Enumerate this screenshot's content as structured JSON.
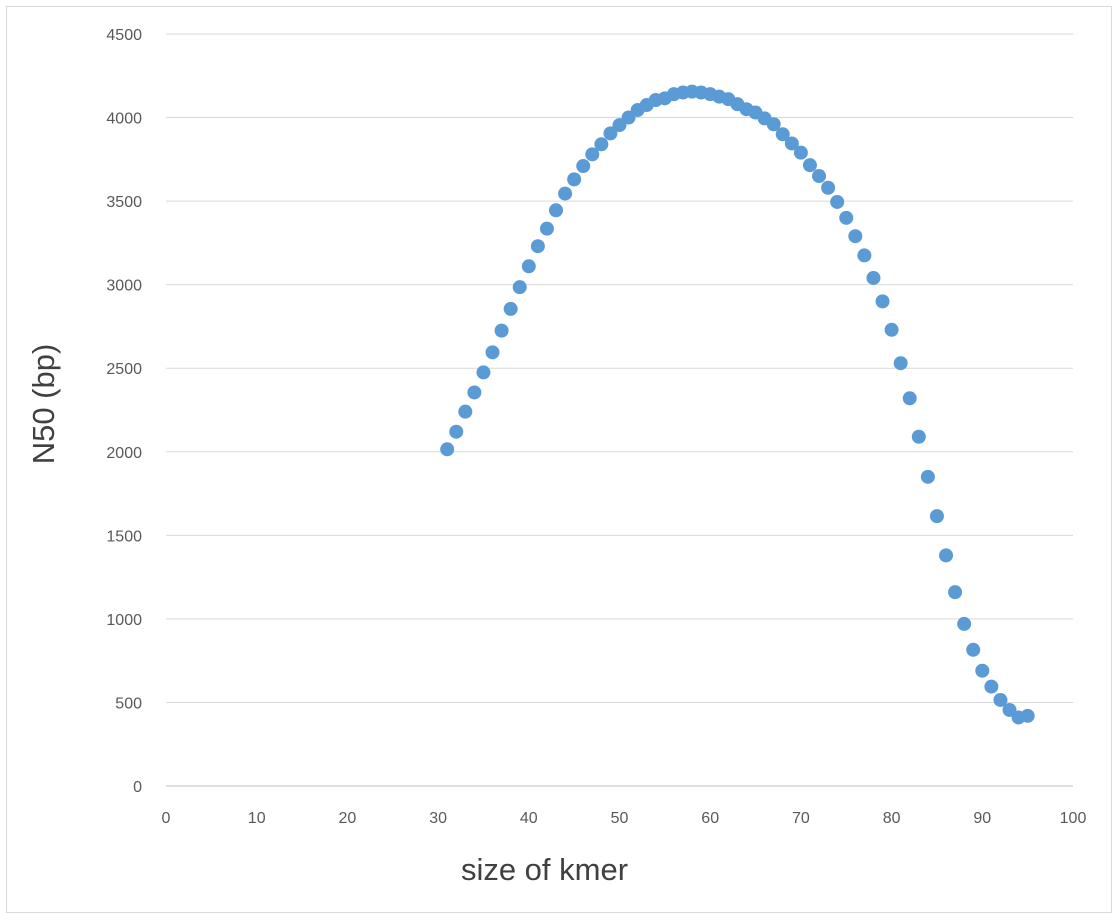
{
  "chart_data": {
    "type": "scatter",
    "title": "",
    "xlabel": "size of kmer",
    "ylabel": "N50 (bp)",
    "xlim": [
      0,
      100
    ],
    "ylim": [
      0,
      4500
    ],
    "x_ticks": [
      0,
      10,
      20,
      30,
      40,
      50,
      60,
      70,
      80,
      90,
      100
    ],
    "y_ticks": [
      0,
      500,
      1000,
      1500,
      2000,
      2500,
      3000,
      3500,
      4000,
      4500
    ],
    "grid": "horizontal",
    "legend": "none",
    "marker_color": "#5b9bd5",
    "series": [
      {
        "x": [
          31,
          32,
          33,
          34,
          35,
          36,
          37,
          38,
          39,
          40,
          41,
          42,
          43,
          44,
          45,
          46,
          47,
          48,
          49,
          50,
          51,
          52,
          53,
          54,
          55,
          56,
          57,
          58,
          59,
          60,
          61,
          62,
          63,
          64,
          65,
          66,
          67,
          68,
          69,
          70,
          71,
          72,
          73,
          74,
          75,
          76,
          77,
          78,
          79,
          80,
          81,
          82,
          83,
          84,
          85,
          86,
          87,
          88,
          89,
          90,
          91,
          92,
          93,
          94,
          95
        ],
        "y": [
          2015,
          2120,
          2240,
          2355,
          2475,
          2595,
          2725,
          2855,
          2985,
          3110,
          3230,
          3335,
          3445,
          3545,
          3630,
          3710,
          3780,
          3840,
          3905,
          3955,
          4000,
          4045,
          4075,
          4105,
          4115,
          4140,
          4150,
          4155,
          4150,
          4140,
          4125,
          4110,
          4080,
          4050,
          4030,
          3995,
          3960,
          3900,
          3845,
          3790,
          3715,
          3650,
          3580,
          3495,
          3400,
          3290,
          3175,
          3040,
          2900,
          2730,
          2530,
          2320,
          2090,
          1850,
          1615,
          1380,
          1160,
          970,
          815,
          690,
          595,
          515,
          455,
          410,
          420
        ]
      }
    ]
  }
}
